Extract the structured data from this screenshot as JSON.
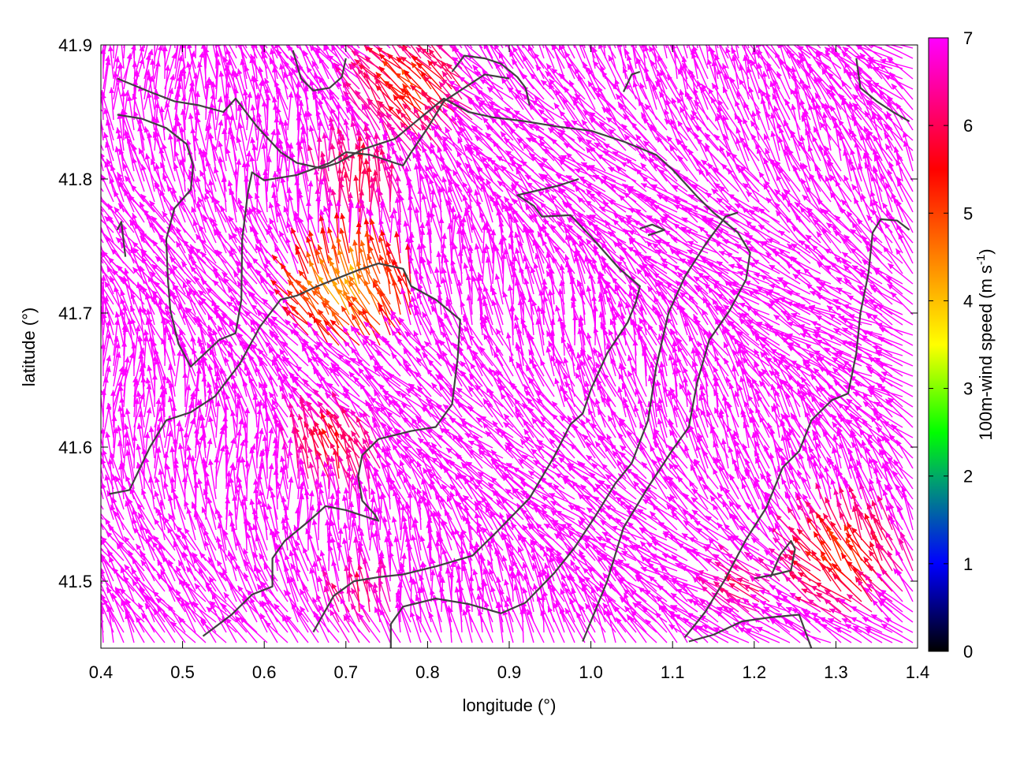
{
  "chart_data": {
    "type": "vector-field",
    "title": "",
    "xlabel": "longitude (°)",
    "ylabel": "latitude (°)",
    "xlim": [
      0.4,
      1.4
    ],
    "ylim": [
      41.45,
      41.9
    ],
    "xticks": [
      "0.4",
      "0.5",
      "0.6",
      "0.7",
      "0.8",
      "0.9",
      "1.0",
      "1.1",
      "1.2",
      "1.3",
      "1.4"
    ],
    "yticks": [
      "41.5",
      "41.6",
      "41.7",
      "41.8",
      "41.9"
    ],
    "colorbar": {
      "label_main": "100m-wind speed (m s",
      "label_sup": "-1",
      "label_end": ")",
      "range": [
        0,
        7
      ],
      "ticks": [
        "0",
        "1",
        "2",
        "3",
        "4",
        "5",
        "6",
        "7"
      ],
      "palette": [
        "#000000",
        "#0000ff",
        "#00ff00",
        "#ffff00",
        "#ff8000",
        "#ff0000",
        "#ff00ff"
      ]
    },
    "vector_field": {
      "units": "m s-1",
      "dominant_speed": 7,
      "dominant_color": "#ff00ff",
      "dominant_direction": "toward upper-left (north-west)",
      "slow_zones": [
        {
          "lon": 0.72,
          "lat": 41.79,
          "speed": 5.5
        },
        {
          "lon": 0.79,
          "lat": 41.86,
          "speed": 5.0
        },
        {
          "lon": 0.71,
          "lat": 41.71,
          "speed": 4.0
        },
        {
          "lon": 0.72,
          "lat": 41.48,
          "speed": 6.0
        },
        {
          "lon": 1.2,
          "lat": 41.49,
          "speed": 6.0
        },
        {
          "lon": 1.32,
          "lat": 41.51,
          "speed": 5.0
        },
        {
          "lon": 0.69,
          "lat": 41.59,
          "speed": 5.5
        }
      ]
    },
    "contour_color": "#404040",
    "contours_lonlat": [
      [
        [
          0.42,
          41.875
        ],
        [
          0.46,
          41.865
        ],
        [
          0.49,
          41.858
        ],
        [
          0.52,
          41.855
        ],
        [
          0.55,
          41.85
        ],
        [
          0.565,
          41.86
        ],
        [
          0.59,
          41.84
        ],
        [
          0.62,
          41.82
        ],
        [
          0.64,
          41.812
        ],
        [
          0.67,
          41.808
        ],
        [
          0.69,
          41.812
        ],
        [
          0.72,
          41.822
        ],
        [
          0.76,
          41.83
        ],
        [
          0.8,
          41.85
        ],
        [
          0.82,
          41.86
        ],
        [
          0.85,
          41.85
        ],
        [
          0.88,
          41.846
        ],
        [
          0.92,
          41.843
        ],
        [
          0.96,
          41.839
        ],
        [
          1.0,
          41.836
        ],
        [
          1.04,
          41.828
        ],
        [
          1.08,
          41.818
        ],
        [
          1.1,
          41.807
        ],
        [
          1.13,
          41.787
        ],
        [
          1.15,
          41.775
        ],
        [
          1.18,
          41.76
        ],
        [
          1.195,
          41.745
        ],
        [
          1.19,
          41.725
        ],
        [
          1.17,
          41.702
        ],
        [
          1.145,
          41.68
        ],
        [
          1.13,
          41.648
        ],
        [
          1.12,
          41.615
        ],
        [
          1.1,
          41.598
        ],
        [
          1.07,
          41.57
        ],
        [
          1.04,
          41.54
        ],
        [
          1.02,
          41.5
        ],
        [
          1.0,
          41.47
        ],
        [
          0.99,
          41.455
        ]
      ],
      [
        [
          0.42,
          41.848
        ],
        [
          0.45,
          41.845
        ],
        [
          0.48,
          41.838
        ],
        [
          0.505,
          41.826
        ],
        [
          0.513,
          41.81
        ],
        [
          0.51,
          41.792
        ],
        [
          0.49,
          41.778
        ],
        [
          0.48,
          41.755
        ],
        [
          0.482,
          41.725
        ],
        [
          0.485,
          41.702
        ],
        [
          0.495,
          41.677
        ],
        [
          0.51,
          41.66
        ],
        [
          0.545,
          41.68
        ],
        [
          0.565,
          41.685
        ],
        [
          0.572,
          41.71
        ],
        [
          0.573,
          41.755
        ],
        [
          0.58,
          41.79
        ],
        [
          0.585,
          41.805
        ],
        [
          0.6,
          41.799
        ],
        [
          0.64,
          41.803
        ],
        [
          0.68,
          41.812
        ],
        [
          0.7,
          41.82
        ],
        [
          0.73,
          41.818
        ],
        [
          0.77,
          41.81
        ],
        [
          0.78,
          41.82
        ],
        [
          0.8,
          41.838
        ],
        [
          0.82,
          41.858
        ],
        [
          0.84,
          41.866
        ],
        [
          0.87,
          41.878
        ],
        [
          0.9,
          41.875
        ]
      ],
      [
        [
          0.41,
          41.565
        ],
        [
          0.435,
          41.568
        ],
        [
          0.46,
          41.6
        ],
        [
          0.48,
          41.62
        ],
        [
          0.51,
          41.626
        ],
        [
          0.54,
          41.638
        ],
        [
          0.57,
          41.662
        ],
        [
          0.595,
          41.69
        ],
        [
          0.62,
          41.71
        ],
        [
          0.64,
          41.713
        ],
        [
          0.665,
          41.72
        ],
        [
          0.69,
          41.726
        ],
        [
          0.715,
          41.732
        ],
        [
          0.74,
          41.737
        ],
        [
          0.77,
          41.733
        ],
        [
          0.78,
          41.72
        ],
        [
          0.81,
          41.71
        ],
        [
          0.84,
          41.695
        ],
        [
          0.837,
          41.667
        ],
        [
          0.83,
          41.632
        ],
        [
          0.81,
          41.615
        ],
        [
          0.78,
          41.612
        ],
        [
          0.74,
          41.606
        ],
        [
          0.72,
          41.594
        ],
        [
          0.715,
          41.578
        ],
        [
          0.72,
          41.56
        ],
        [
          0.735,
          41.55
        ],
        [
          0.74,
          41.545
        ],
        [
          0.7,
          41.553
        ],
        [
          0.675,
          41.556
        ],
        [
          0.655,
          41.545
        ],
        [
          0.625,
          41.53
        ],
        [
          0.61,
          41.517
        ],
        [
          0.61,
          41.496
        ],
        [
          0.585,
          41.49
        ],
        [
          0.56,
          41.475
        ],
        [
          0.525,
          41.459
        ]
      ],
      [
        [
          0.66,
          41.462
        ],
        [
          0.685,
          41.489
        ],
        [
          0.71,
          41.5
        ],
        [
          0.74,
          41.503
        ],
        [
          0.77,
          41.505
        ],
        [
          0.81,
          41.511
        ],
        [
          0.855,
          41.519
        ],
        [
          0.885,
          41.537
        ],
        [
          0.925,
          41.562
        ],
        [
          0.955,
          41.593
        ],
        [
          0.975,
          41.617
        ],
        [
          0.99,
          41.625
        ],
        [
          1.0,
          41.643
        ],
        [
          1.02,
          41.67
        ],
        [
          1.045,
          41.693
        ],
        [
          1.055,
          41.708
        ],
        [
          1.06,
          41.72
        ],
        [
          1.035,
          41.733
        ],
        [
          1.0,
          41.757
        ],
        [
          0.975,
          41.773
        ],
        [
          0.94,
          41.772
        ],
        [
          0.93,
          41.78
        ],
        [
          0.91,
          41.788
        ],
        [
          0.96,
          41.795
        ],
        [
          0.985,
          41.8
        ]
      ],
      [
        [
          0.755,
          41.45
        ],
        [
          0.755,
          41.468
        ],
        [
          0.77,
          41.481
        ],
        [
          0.81,
          41.487
        ],
        [
          0.85,
          41.483
        ],
        [
          0.89,
          41.476
        ],
        [
          0.92,
          41.484
        ],
        [
          0.955,
          41.506
        ],
        [
          0.98,
          41.525
        ],
        [
          1.005,
          41.548
        ],
        [
          1.03,
          41.573
        ],
        [
          1.05,
          41.588
        ],
        [
          1.07,
          41.62
        ],
        [
          1.08,
          41.66
        ],
        [
          1.095,
          41.7
        ],
        [
          1.115,
          41.727
        ],
        [
          1.14,
          41.751
        ],
        [
          1.165,
          41.772
        ],
        [
          1.18,
          41.775
        ]
      ],
      [
        [
          1.12,
          41.455
        ],
        [
          1.15,
          41.46
        ],
        [
          1.185,
          41.47
        ],
        [
          1.22,
          41.473
        ],
        [
          1.255,
          41.475
        ],
        [
          1.27,
          41.45
        ]
      ],
      [
        [
          1.2,
          41.502
        ],
        [
          1.225,
          41.505
        ],
        [
          1.245,
          41.508
        ],
        [
          1.25,
          41.524
        ],
        [
          1.245,
          41.53
        ],
        [
          1.232,
          41.52
        ],
        [
          1.22,
          41.503
        ]
      ],
      [
        [
          1.115,
          41.458
        ],
        [
          1.14,
          41.477
        ],
        [
          1.165,
          41.502
        ],
        [
          1.19,
          41.531
        ],
        [
          1.215,
          41.555
        ],
        [
          1.235,
          41.585
        ],
        [
          1.255,
          41.597
        ],
        [
          1.27,
          41.62
        ],
        [
          1.295,
          41.635
        ],
        [
          1.315,
          41.64
        ],
        [
          1.325,
          41.67
        ],
        [
          1.33,
          41.7
        ],
        [
          1.34,
          41.73
        ],
        [
          1.345,
          41.76
        ],
        [
          1.355,
          41.77
        ],
        [
          1.375,
          41.769
        ],
        [
          1.39,
          41.762
        ]
      ],
      [
        [
          1.325,
          41.89
        ],
        [
          1.33,
          41.868
        ],
        [
          1.35,
          41.858
        ],
        [
          1.37,
          41.85
        ],
        [
          1.39,
          41.843
        ]
      ],
      [
        [
          0.635,
          41.896
        ],
        [
          0.645,
          41.875
        ],
        [
          0.66,
          41.866
        ],
        [
          0.68,
          41.868
        ],
        [
          0.695,
          41.876
        ],
        [
          0.7,
          41.89
        ]
      ],
      [
        [
          0.83,
          41.88
        ],
        [
          0.845,
          41.892
        ],
        [
          0.87,
          41.89
        ],
        [
          0.89,
          41.886
        ],
        [
          0.91,
          41.876
        ],
        [
          0.92,
          41.868
        ],
        [
          0.925,
          41.855
        ]
      ],
      [
        [
          1.04,
          41.865
        ],
        [
          1.05,
          41.878
        ],
        [
          1.06,
          41.88
        ]
      ],
      [
        [
          1.06,
          41.763
        ],
        [
          1.075,
          41.766
        ],
        [
          1.09,
          41.762
        ],
        [
          1.07,
          41.758
        ]
      ],
      [
        [
          0.42,
          41.762
        ],
        [
          0.425,
          41.768
        ],
        [
          0.43,
          41.742
        ]
      ]
    ]
  }
}
